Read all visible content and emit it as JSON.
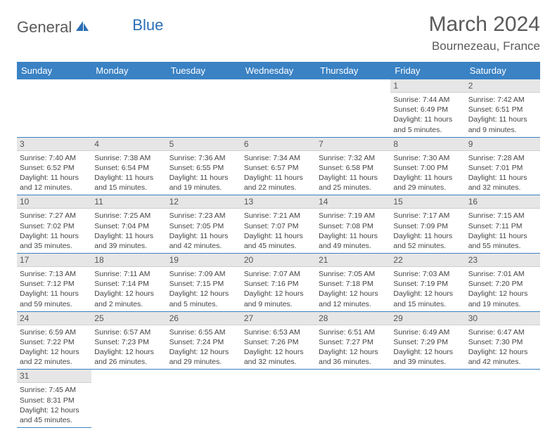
{
  "brand": {
    "part1": "General",
    "part2": "Blue"
  },
  "header": {
    "title": "March 2024",
    "location": "Bournezeau, France"
  },
  "colors": {
    "header_bg": "#3a82c4",
    "header_fg": "#ffffff",
    "daynum_bg": "#e6e6e6",
    "row_border": "#3a82c4"
  },
  "dayNames": [
    "Sunday",
    "Monday",
    "Tuesday",
    "Wednesday",
    "Thursday",
    "Friday",
    "Saturday"
  ],
  "weeks": [
    [
      null,
      null,
      null,
      null,
      null,
      {
        "n": "1",
        "sr": "Sunrise: 7:44 AM",
        "ss": "Sunset: 6:49 PM",
        "dl": "Daylight: 11 hours and 5 minutes."
      },
      {
        "n": "2",
        "sr": "Sunrise: 7:42 AM",
        "ss": "Sunset: 6:51 PM",
        "dl": "Daylight: 11 hours and 9 minutes."
      }
    ],
    [
      {
        "n": "3",
        "sr": "Sunrise: 7:40 AM",
        "ss": "Sunset: 6:52 PM",
        "dl": "Daylight: 11 hours and 12 minutes."
      },
      {
        "n": "4",
        "sr": "Sunrise: 7:38 AM",
        "ss": "Sunset: 6:54 PM",
        "dl": "Daylight: 11 hours and 15 minutes."
      },
      {
        "n": "5",
        "sr": "Sunrise: 7:36 AM",
        "ss": "Sunset: 6:55 PM",
        "dl": "Daylight: 11 hours and 19 minutes."
      },
      {
        "n": "6",
        "sr": "Sunrise: 7:34 AM",
        "ss": "Sunset: 6:57 PM",
        "dl": "Daylight: 11 hours and 22 minutes."
      },
      {
        "n": "7",
        "sr": "Sunrise: 7:32 AM",
        "ss": "Sunset: 6:58 PM",
        "dl": "Daylight: 11 hours and 25 minutes."
      },
      {
        "n": "8",
        "sr": "Sunrise: 7:30 AM",
        "ss": "Sunset: 7:00 PM",
        "dl": "Daylight: 11 hours and 29 minutes."
      },
      {
        "n": "9",
        "sr": "Sunrise: 7:28 AM",
        "ss": "Sunset: 7:01 PM",
        "dl": "Daylight: 11 hours and 32 minutes."
      }
    ],
    [
      {
        "n": "10",
        "sr": "Sunrise: 7:27 AM",
        "ss": "Sunset: 7:02 PM",
        "dl": "Daylight: 11 hours and 35 minutes."
      },
      {
        "n": "11",
        "sr": "Sunrise: 7:25 AM",
        "ss": "Sunset: 7:04 PM",
        "dl": "Daylight: 11 hours and 39 minutes."
      },
      {
        "n": "12",
        "sr": "Sunrise: 7:23 AM",
        "ss": "Sunset: 7:05 PM",
        "dl": "Daylight: 11 hours and 42 minutes."
      },
      {
        "n": "13",
        "sr": "Sunrise: 7:21 AM",
        "ss": "Sunset: 7:07 PM",
        "dl": "Daylight: 11 hours and 45 minutes."
      },
      {
        "n": "14",
        "sr": "Sunrise: 7:19 AM",
        "ss": "Sunset: 7:08 PM",
        "dl": "Daylight: 11 hours and 49 minutes."
      },
      {
        "n": "15",
        "sr": "Sunrise: 7:17 AM",
        "ss": "Sunset: 7:09 PM",
        "dl": "Daylight: 11 hours and 52 minutes."
      },
      {
        "n": "16",
        "sr": "Sunrise: 7:15 AM",
        "ss": "Sunset: 7:11 PM",
        "dl": "Daylight: 11 hours and 55 minutes."
      }
    ],
    [
      {
        "n": "17",
        "sr": "Sunrise: 7:13 AM",
        "ss": "Sunset: 7:12 PM",
        "dl": "Daylight: 11 hours and 59 minutes."
      },
      {
        "n": "18",
        "sr": "Sunrise: 7:11 AM",
        "ss": "Sunset: 7:14 PM",
        "dl": "Daylight: 12 hours and 2 minutes."
      },
      {
        "n": "19",
        "sr": "Sunrise: 7:09 AM",
        "ss": "Sunset: 7:15 PM",
        "dl": "Daylight: 12 hours and 5 minutes."
      },
      {
        "n": "20",
        "sr": "Sunrise: 7:07 AM",
        "ss": "Sunset: 7:16 PM",
        "dl": "Daylight: 12 hours and 9 minutes."
      },
      {
        "n": "21",
        "sr": "Sunrise: 7:05 AM",
        "ss": "Sunset: 7:18 PM",
        "dl": "Daylight: 12 hours and 12 minutes."
      },
      {
        "n": "22",
        "sr": "Sunrise: 7:03 AM",
        "ss": "Sunset: 7:19 PM",
        "dl": "Daylight: 12 hours and 15 minutes."
      },
      {
        "n": "23",
        "sr": "Sunrise: 7:01 AM",
        "ss": "Sunset: 7:20 PM",
        "dl": "Daylight: 12 hours and 19 minutes."
      }
    ],
    [
      {
        "n": "24",
        "sr": "Sunrise: 6:59 AM",
        "ss": "Sunset: 7:22 PM",
        "dl": "Daylight: 12 hours and 22 minutes."
      },
      {
        "n": "25",
        "sr": "Sunrise: 6:57 AM",
        "ss": "Sunset: 7:23 PM",
        "dl": "Daylight: 12 hours and 26 minutes."
      },
      {
        "n": "26",
        "sr": "Sunrise: 6:55 AM",
        "ss": "Sunset: 7:24 PM",
        "dl": "Daylight: 12 hours and 29 minutes."
      },
      {
        "n": "27",
        "sr": "Sunrise: 6:53 AM",
        "ss": "Sunset: 7:26 PM",
        "dl": "Daylight: 12 hours and 32 minutes."
      },
      {
        "n": "28",
        "sr": "Sunrise: 6:51 AM",
        "ss": "Sunset: 7:27 PM",
        "dl": "Daylight: 12 hours and 36 minutes."
      },
      {
        "n": "29",
        "sr": "Sunrise: 6:49 AM",
        "ss": "Sunset: 7:29 PM",
        "dl": "Daylight: 12 hours and 39 minutes."
      },
      {
        "n": "30",
        "sr": "Sunrise: 6:47 AM",
        "ss": "Sunset: 7:30 PM",
        "dl": "Daylight: 12 hours and 42 minutes."
      }
    ],
    [
      {
        "n": "31",
        "sr": "Sunrise: 7:45 AM",
        "ss": "Sunset: 8:31 PM",
        "dl": "Daylight: 12 hours and 45 minutes."
      },
      null,
      null,
      null,
      null,
      null,
      null
    ]
  ]
}
